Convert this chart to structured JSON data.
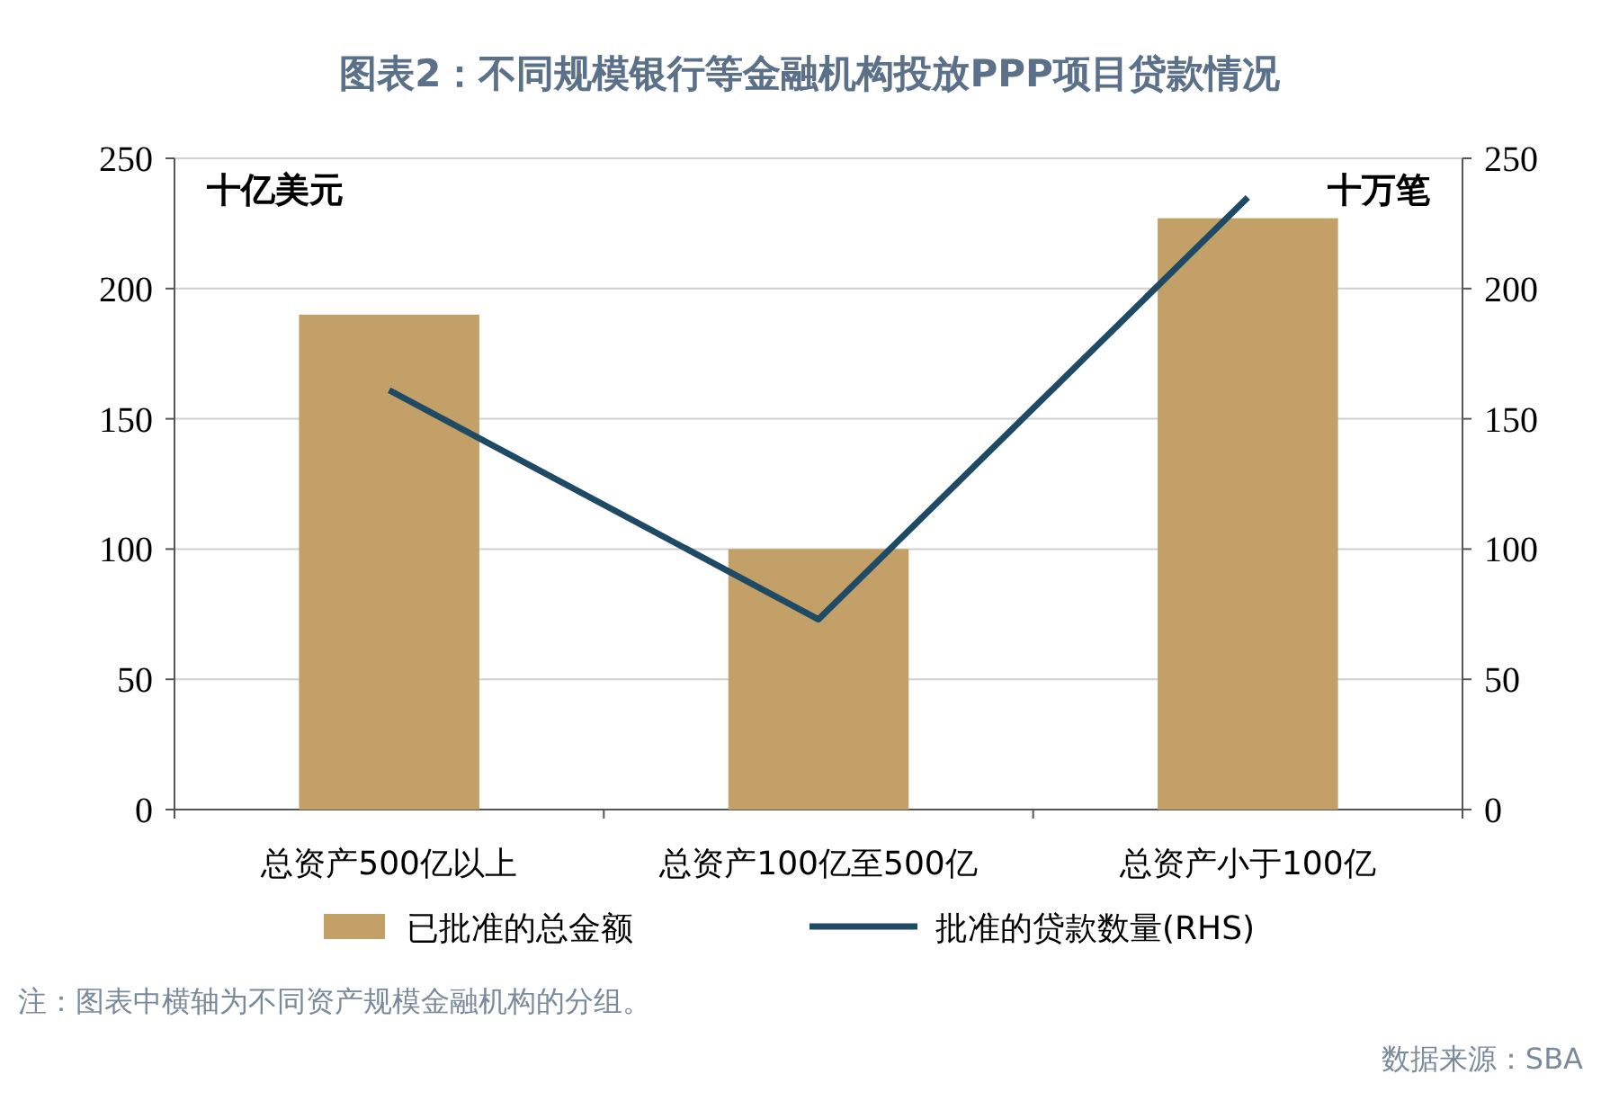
{
  "chart_data": {
    "type": "bar",
    "title": "图表2：不同规模银行等金融机构投放PPP项目贷款情况",
    "categories": [
      "总资产500亿以上",
      "总资产100亿至500亿",
      "总资产小于100亿"
    ],
    "series": [
      {
        "name": "已批准的总金额",
        "color": "#c2a068",
        "values": [
          190,
          100,
          227
        ]
      },
      {
        "name": "批准的贷款数量(RHS)",
        "type": "line",
        "axis": "y2",
        "color": "#1e4a66",
        "values": [
          161,
          73,
          235
        ]
      }
    ],
    "ylabel": "十亿美元",
    "y2label": "十万笔",
    "ylim": [
      0,
      250
    ],
    "yticks": [
      0,
      50,
      100,
      150,
      200,
      250
    ],
    "y2lim": [
      0,
      250
    ],
    "y2ticks": [
      0,
      50,
      100,
      150,
      200,
      250
    ],
    "grid": "y",
    "legend": "bottom",
    "annotations": [
      "注：图表中横轴为不同资产规模金融机构的分组。",
      "数据来源：SBA"
    ]
  }
}
